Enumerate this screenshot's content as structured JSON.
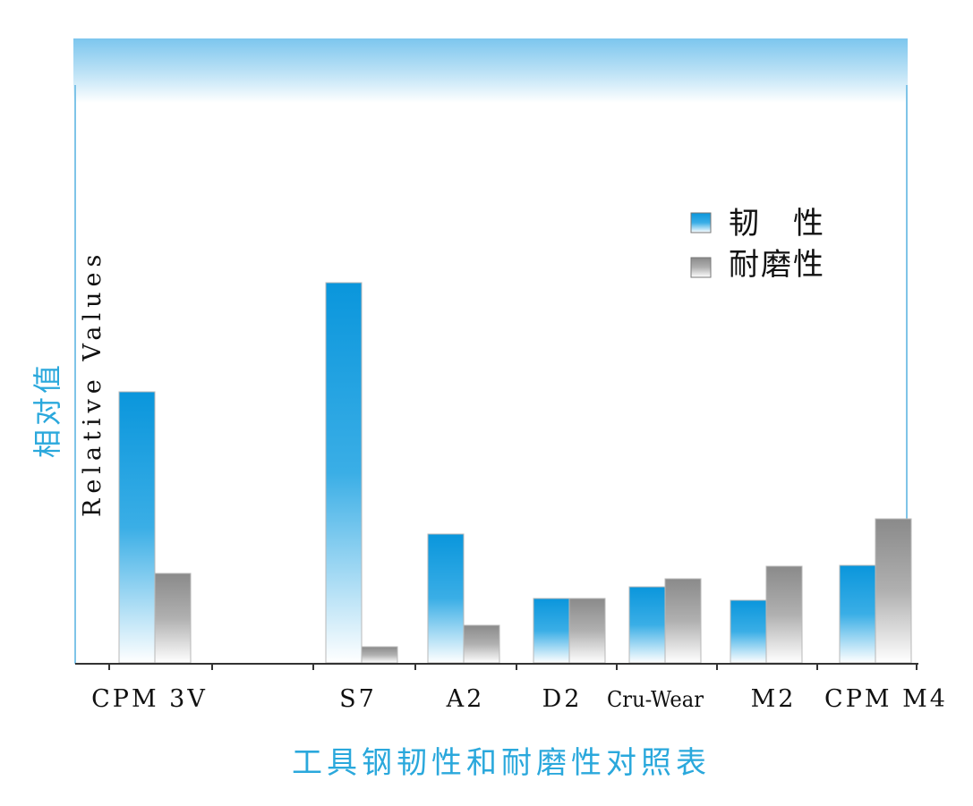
{
  "chart_data": {
    "type": "bar",
    "title": "工具钢韧性和耐磨性对照表",
    "ylabel_cn": "相对值",
    "ylabel_en": "Relative Values",
    "categories": [
      "CPM 3V",
      "S7",
      "A2",
      "D2",
      "Cru-Wear",
      "M2",
      "CPM M4"
    ],
    "series": [
      {
        "name": "韧　性",
        "values": [
          303,
          425,
          144,
          72,
          85,
          70,
          109
        ]
      },
      {
        "name": "耐磨性",
        "values": [
          100,
          18,
          42,
          72,
          94,
          108,
          161
        ]
      }
    ],
    "ylim": [
      0,
      460
    ],
    "grid": false,
    "legend_position": "top-right"
  },
  "colors": {
    "title": "#2aa8dc",
    "series_toughness_top": "#0a96dc",
    "series_toughness_bottom": "#ffffff",
    "series_wear_top": "#8c8c8c",
    "series_wear_bottom": "#ffffff",
    "header_band_top": "#7cc6ee",
    "axis": "#333333"
  }
}
